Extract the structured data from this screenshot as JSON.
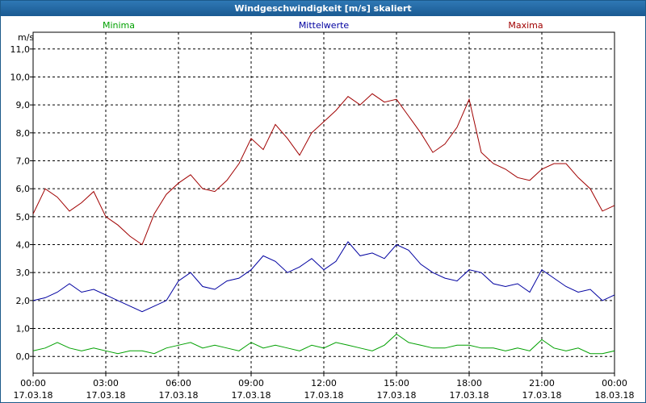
{
  "chart_data": {
    "type": "line",
    "title": "Windgeschwindigkeit [m/s] skaliert",
    "ylabel": "m/s",
    "ylim": [
      -0.6,
      11.6
    ],
    "yticks": [
      0,
      1,
      2,
      3,
      4,
      5,
      6,
      7,
      8,
      9,
      10,
      11
    ],
    "ytick_labels": [
      "0,0",
      "1,0",
      "2,0",
      "3,0",
      "4,0",
      "5,0",
      "6,0",
      "7,0",
      "8,0",
      "9,0",
      "10,0",
      "11,0"
    ],
    "xlim": [
      0,
      24
    ],
    "xticks": [
      {
        "x": 0,
        "time": "00:00",
        "date": "17.03.18"
      },
      {
        "x": 3,
        "time": "03:00",
        "date": "17.03.18"
      },
      {
        "x": 6,
        "time": "06:00",
        "date": "17.03.18"
      },
      {
        "x": 9,
        "time": "09:00",
        "date": "17.03.18"
      },
      {
        "x": 12,
        "time": "12:00",
        "date": "17.03.18"
      },
      {
        "x": 15,
        "time": "15:00",
        "date": "17.03.18"
      },
      {
        "x": 18,
        "time": "18:00",
        "date": "17.03.18"
      },
      {
        "x": 21,
        "time": "21:00",
        "date": "17.03.18"
      },
      {
        "x": 24,
        "time": "00:00",
        "date": "18.03.18"
      }
    ],
    "series": [
      {
        "name": "Minima",
        "color": "#00a000",
        "x": [
          0,
          0.5,
          1,
          1.5,
          2,
          2.5,
          3,
          3.5,
          4,
          4.5,
          5,
          5.5,
          6,
          6.5,
          7,
          7.5,
          8,
          8.5,
          9,
          9.5,
          10,
          10.5,
          11,
          11.5,
          12,
          12.5,
          13,
          13.5,
          14,
          14.5,
          15,
          15.5,
          16,
          16.5,
          17,
          17.5,
          18,
          18.5,
          19,
          19.5,
          20,
          20.5,
          21,
          21.5,
          22,
          22.5,
          23,
          23.5,
          24
        ],
        "values": [
          0.2,
          0.3,
          0.5,
          0.3,
          0.2,
          0.3,
          0.2,
          0.1,
          0.2,
          0.2,
          0.1,
          0.3,
          0.4,
          0.5,
          0.3,
          0.4,
          0.3,
          0.2,
          0.5,
          0.3,
          0.4,
          0.3,
          0.2,
          0.4,
          0.3,
          0.5,
          0.4,
          0.3,
          0.2,
          0.4,
          0.8,
          0.5,
          0.4,
          0.3,
          0.3,
          0.4,
          0.4,
          0.3,
          0.3,
          0.2,
          0.3,
          0.2,
          0.6,
          0.3,
          0.2,
          0.3,
          0.1,
          0.1,
          0.2
        ]
      },
      {
        "name": "Mittelwerte",
        "color": "#0000a0",
        "x": [
          0,
          0.5,
          1,
          1.5,
          2,
          2.5,
          3,
          3.5,
          4,
          4.5,
          5,
          5.5,
          6,
          6.5,
          7,
          7.5,
          8,
          8.5,
          9,
          9.5,
          10,
          10.5,
          11,
          11.5,
          12,
          12.5,
          13,
          13.5,
          14,
          14.5,
          15,
          15.5,
          16,
          16.5,
          17,
          17.5,
          18,
          18.5,
          19,
          19.5,
          20,
          20.5,
          21,
          21.5,
          22,
          22.5,
          23,
          23.5,
          24
        ],
        "values": [
          2.0,
          2.1,
          2.3,
          2.6,
          2.3,
          2.4,
          2.2,
          2.0,
          1.8,
          1.6,
          1.8,
          2.0,
          2.7,
          3.0,
          2.5,
          2.4,
          2.7,
          2.8,
          3.1,
          3.6,
          3.4,
          3.0,
          3.2,
          3.5,
          3.1,
          3.4,
          4.1,
          3.6,
          3.7,
          3.5,
          4.0,
          3.8,
          3.3,
          3.0,
          2.8,
          2.7,
          3.1,
          3.0,
          2.6,
          2.5,
          2.6,
          2.3,
          3.1,
          2.8,
          2.5,
          2.3,
          2.4,
          2.0,
          2.2
        ]
      },
      {
        "name": "Maxima",
        "color": "#a00000",
        "x": [
          0,
          0.5,
          1,
          1.5,
          2,
          2.5,
          3,
          3.5,
          4,
          4.5,
          5,
          5.5,
          6,
          6.5,
          7,
          7.5,
          8,
          8.5,
          9,
          9.5,
          10,
          10.5,
          11,
          11.5,
          12,
          12.5,
          13,
          13.5,
          14,
          14.5,
          15,
          15.5,
          16,
          16.5,
          17,
          17.5,
          18,
          18.5,
          19,
          19.5,
          20,
          20.5,
          21,
          21.5,
          22,
          22.5,
          23,
          23.5,
          24
        ],
        "values": [
          5.1,
          6.0,
          5.7,
          5.2,
          5.5,
          5.9,
          5.0,
          4.7,
          4.3,
          4.0,
          5.1,
          5.8,
          6.2,
          6.5,
          6.0,
          5.9,
          6.3,
          6.9,
          7.8,
          7.4,
          8.3,
          7.8,
          7.2,
          8.0,
          8.4,
          8.8,
          9.3,
          9.0,
          9.4,
          9.1,
          9.2,
          8.6,
          8.0,
          7.3,
          7.6,
          8.2,
          9.2,
          7.3,
          6.9,
          6.7,
          6.4,
          6.3,
          6.7,
          6.9,
          6.9,
          6.4,
          6.0,
          5.2,
          5.4
        ]
      }
    ]
  }
}
